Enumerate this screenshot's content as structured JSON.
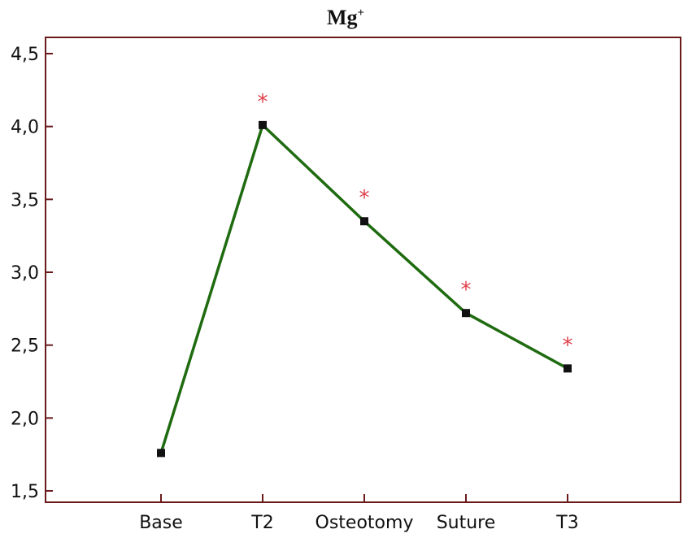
{
  "chart_data": {
    "type": "line",
    "title": "Mg",
    "title_superscript": "+",
    "xlabel": "",
    "ylabel": "",
    "categories": [
      "Base",
      "T2",
      "Osteotomy",
      "Suture",
      "T3"
    ],
    "series": [
      {
        "values": [
          1.76,
          4.01,
          3.35,
          2.72,
          2.34
        ]
      }
    ],
    "significance": [
      "",
      "*",
      "*",
      "*",
      "*"
    ],
    "yticks": [
      "1,5",
      "2,0",
      "2,5",
      "3,0",
      "3,5",
      "4,0",
      "4,5"
    ],
    "ytick_values": [
      1.5,
      2.0,
      2.5,
      3.0,
      3.5,
      4.0,
      4.5
    ],
    "ylim": [
      1.5,
      4.5
    ],
    "grid": false,
    "legend": "none"
  },
  "colors": {
    "frame": "#6b1a1a",
    "line": "#1f6b10",
    "marker": "#111111",
    "star": "#e0404a",
    "text": "#111111"
  }
}
